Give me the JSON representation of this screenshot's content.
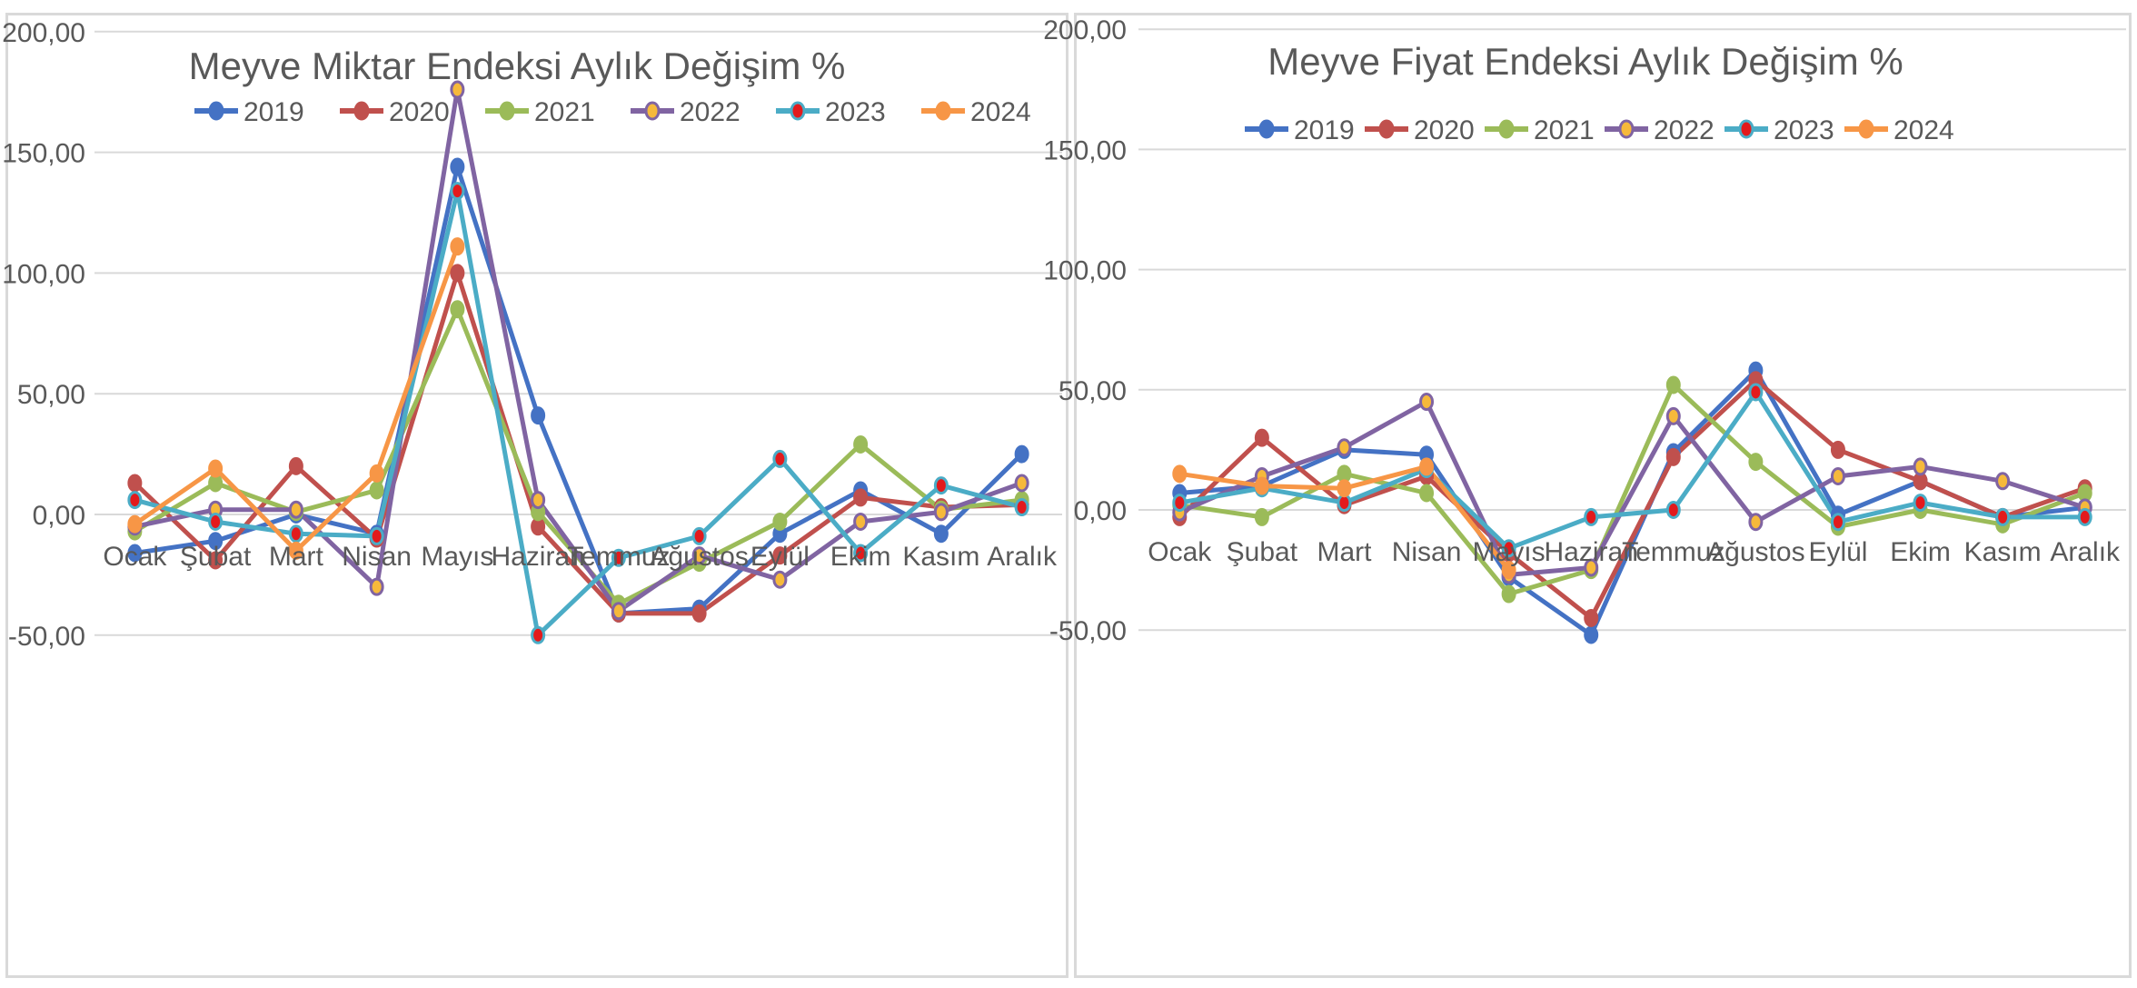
{
  "chart_data": [
    {
      "type": "line",
      "title": "Meyve Miktar Endeksi Aylık Değişim %",
      "categories": [
        "Ocak",
        "Şubat",
        "Mart",
        "Nisan",
        "Mayıs",
        "Haziran",
        "Temmuz",
        "Ağustos",
        "Eylül",
        "Ekim",
        "Kasım",
        "Aralık"
      ],
      "ylim": [
        -50,
        200
      ],
      "yticks": [
        "200,00",
        "150,00",
        "100,00",
        "50,00",
        "0,00",
        "-50,00"
      ],
      "grid": true,
      "legend_position": "top",
      "series": [
        {
          "name": "2019",
          "color": "#4472c4",
          "marker": "#4472c4",
          "values": [
            -16,
            -11,
            0,
            -8,
            144,
            41,
            -41,
            -39,
            -8,
            10,
            -8,
            25
          ]
        },
        {
          "name": "2020",
          "color": "#c0504d",
          "marker": "#c0504d",
          "values": [
            13,
            -19,
            20,
            -10,
            100,
            -5,
            -41,
            -41,
            -17,
            7,
            3,
            4
          ]
        },
        {
          "name": "2021",
          "color": "#9bbb59",
          "marker": "#9bbb59",
          "values": [
            -7,
            13,
            1,
            10,
            85,
            1,
            -37,
            -20,
            -3,
            29,
            2,
            6
          ]
        },
        {
          "name": "2022",
          "color": "#8064a2",
          "marker": "#f6b93b",
          "values": [
            -5,
            2,
            2,
            -30,
            176,
            6,
            -40,
            -17,
            -27,
            -3,
            1,
            13
          ]
        },
        {
          "name": "2023",
          "color": "#4bacc6",
          "marker": "#e31a1c",
          "values": [
            6,
            -3,
            -8,
            -9,
            134,
            -50,
            -18,
            -9,
            23,
            -16,
            12,
            3
          ]
        },
        {
          "name": "2024",
          "color": "#f79646",
          "marker": "#f79646",
          "values": [
            -4,
            19,
            -15,
            17,
            111,
            null,
            null,
            null,
            null,
            null,
            null,
            null
          ]
        }
      ]
    },
    {
      "type": "line",
      "title": "Meyve Fiyat Endeksi Aylık Değişim %",
      "categories": [
        "Ocak",
        "Şubat",
        "Mart",
        "Nisan",
        "Mayıs",
        "Haziran",
        "Temmuz",
        "Ağustos",
        "Eylül",
        "Ekim",
        "Kasım",
        "Aralık"
      ],
      "ylim": [
        -50,
        200
      ],
      "yticks": [
        "200,00",
        "150,00",
        "100,00",
        "50,00",
        "0,00",
        "-50,00"
      ],
      "grid": true,
      "legend_position": "top",
      "series": [
        {
          "name": "2019",
          "color": "#4472c4",
          "marker": "#4472c4",
          "values": [
            7,
            10,
            25,
            23,
            -28,
            -52,
            24,
            58,
            -2,
            12,
            -3,
            1
          ]
        },
        {
          "name": "2020",
          "color": "#c0504d",
          "marker": "#c0504d",
          "values": [
            -3,
            30,
            2,
            14,
            -18,
            -45,
            22,
            54,
            25,
            12,
            -3,
            9
          ]
        },
        {
          "name": "2021",
          "color": "#9bbb59",
          "marker": "#9bbb59",
          "values": [
            2,
            -3,
            15,
            7,
            -35,
            -25,
            52,
            20,
            -7,
            0,
            -6,
            7
          ]
        },
        {
          "name": "2022",
          "color": "#8064a2",
          "marker": "#f6b93b",
          "values": [
            -1,
            14,
            26,
            45,
            -27,
            -24,
            39,
            -5,
            14,
            18,
            12,
            1
          ]
        },
        {
          "name": "2023",
          "color": "#4bacc6",
          "marker": "#e31a1c",
          "values": [
            3,
            9,
            3,
            17,
            -16,
            -3,
            0,
            49,
            -5,
            3,
            -3,
            -3
          ]
        },
        {
          "name": "2024",
          "color": "#f79646",
          "marker": "#f79646",
          "values": [
            15,
            10,
            9,
            18,
            -25,
            null,
            null,
            null,
            null,
            null,
            null,
            null
          ]
        }
      ]
    }
  ]
}
